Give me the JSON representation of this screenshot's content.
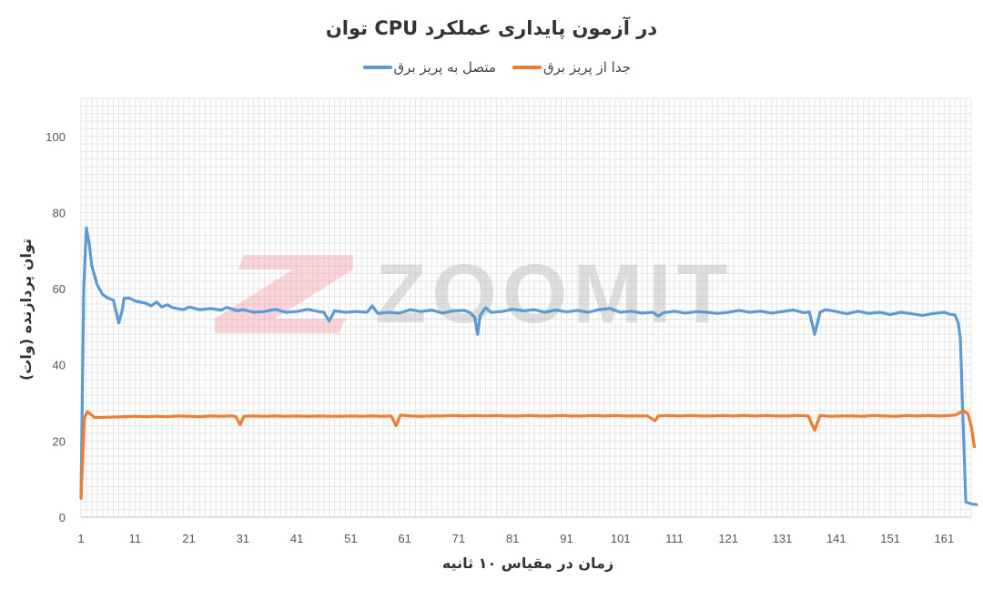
{
  "chart_data": {
    "type": "line",
    "title": "توان CPU در آزمون پایداری عملکرد",
    "xlabel": "زمان در مقیاس ۱۰ ثانیه",
    "ylabel": "توان پردازنده (وات)",
    "xlim": [
      1,
      166
    ],
    "ylim": [
      0,
      100
    ],
    "x_ticks": [
      1,
      11,
      21,
      31,
      41,
      51,
      61,
      71,
      81,
      91,
      101,
      111,
      121,
      131,
      141,
      151,
      161
    ],
    "y_ticks": [
      0,
      20,
      40,
      60,
      80,
      100
    ],
    "grid": true,
    "legend_position": "top",
    "watermark": "ZOOMIT",
    "series": [
      {
        "name": "متصل به پریز برق",
        "color": "#5b9bd5",
        "points": [
          [
            1,
            5
          ],
          [
            1.5,
            60
          ],
          [
            2,
            76
          ],
          [
            2.5,
            72
          ],
          [
            3,
            66
          ],
          [
            4,
            61
          ],
          [
            5,
            58.5
          ],
          [
            6,
            57.5
          ],
          [
            7,
            57
          ],
          [
            8,
            51
          ],
          [
            8.6,
            54
          ],
          [
            9,
            57.5
          ],
          [
            10,
            57.5
          ],
          [
            11,
            56.8
          ],
          [
            13,
            56.2
          ],
          [
            14,
            55.5
          ],
          [
            15,
            56.5
          ],
          [
            16,
            55.2
          ],
          [
            17,
            55.8
          ],
          [
            18,
            55
          ],
          [
            20,
            54.5
          ],
          [
            21,
            55.2
          ],
          [
            23,
            54.5
          ],
          [
            25,
            54.8
          ],
          [
            27,
            54.4
          ],
          [
            28,
            55.1
          ],
          [
            30,
            54.2
          ],
          [
            31,
            54.5
          ],
          [
            33,
            53.8
          ],
          [
            35,
            54
          ],
          [
            37,
            54.6
          ],
          [
            39,
            53.8
          ],
          [
            41,
            54
          ],
          [
            43,
            54.6
          ],
          [
            45,
            54
          ],
          [
            46,
            53.8
          ],
          [
            47,
            51.5
          ],
          [
            48,
            54.2
          ],
          [
            50,
            53.8
          ],
          [
            52,
            54
          ],
          [
            54,
            53.8
          ],
          [
            55,
            55.5
          ],
          [
            56,
            53.5
          ],
          [
            58,
            53.8
          ],
          [
            60,
            53.6
          ],
          [
            62,
            54.5
          ],
          [
            64,
            54
          ],
          [
            66,
            54.4
          ],
          [
            68,
            53.6
          ],
          [
            70,
            54.2
          ],
          [
            72,
            54.3
          ],
          [
            73,
            53.8
          ],
          [
            74,
            52.5
          ],
          [
            74.5,
            48
          ],
          [
            75,
            53
          ],
          [
            76,
            55
          ],
          [
            77,
            53.8
          ],
          [
            79,
            54
          ],
          [
            81,
            54.6
          ],
          [
            83,
            54.2
          ],
          [
            85,
            54.5
          ],
          [
            87,
            53.8
          ],
          [
            89,
            54.4
          ],
          [
            91,
            53.9
          ],
          [
            93,
            54.3
          ],
          [
            95,
            53.8
          ],
          [
            97,
            54.5
          ],
          [
            99,
            54.8
          ],
          [
            101,
            53.8
          ],
          [
            103,
            54.1
          ],
          [
            105,
            53.6
          ],
          [
            107,
            53.8
          ],
          [
            108,
            52.8
          ],
          [
            109,
            53.7
          ],
          [
            111,
            54.1
          ],
          [
            113,
            53.6
          ],
          [
            115,
            54
          ],
          [
            117,
            53.8
          ],
          [
            119,
            53.5
          ],
          [
            121,
            53.8
          ],
          [
            123,
            54.3
          ],
          [
            125,
            53.8
          ],
          [
            127,
            54.1
          ],
          [
            129,
            53.6
          ],
          [
            131,
            54
          ],
          [
            133,
            54.4
          ],
          [
            135,
            53.7
          ],
          [
            136,
            53.9
          ],
          [
            137,
            48
          ],
          [
            138,
            53.8
          ],
          [
            139,
            54.5
          ],
          [
            141,
            54
          ],
          [
            143,
            53.4
          ],
          [
            145,
            54.1
          ],
          [
            147,
            53.5
          ],
          [
            149,
            53.8
          ],
          [
            151,
            53.2
          ],
          [
            153,
            53.8
          ],
          [
            155,
            53.4
          ],
          [
            157,
            53
          ],
          [
            159,
            53.5
          ],
          [
            161,
            53.8
          ],
          [
            162,
            53.3
          ],
          [
            163,
            53.1
          ],
          [
            163.6,
            51
          ],
          [
            164,
            47
          ],
          [
            164.5,
            25
          ],
          [
            165,
            4
          ],
          [
            166,
            3.5
          ],
          [
            167,
            3.3
          ]
        ]
      },
      {
        "name": "جدا از پریز برق",
        "color": "#ed7d31",
        "points": [
          [
            1,
            5
          ],
          [
            1.6,
            26
          ],
          [
            2.2,
            27.7
          ],
          [
            3,
            26.8
          ],
          [
            3.5,
            26.2
          ],
          [
            5,
            26.2
          ],
          [
            7,
            26.3
          ],
          [
            9,
            26.4
          ],
          [
            11,
            26.5
          ],
          [
            13,
            26.4
          ],
          [
            15,
            26.5
          ],
          [
            17,
            26.4
          ],
          [
            19,
            26.6
          ],
          [
            21,
            26.5
          ],
          [
            23,
            26.4
          ],
          [
            25,
            26.6
          ],
          [
            27,
            26.5
          ],
          [
            29,
            26.6
          ],
          [
            29.7,
            26.4
          ],
          [
            30.5,
            24.3
          ],
          [
            31.2,
            26.5
          ],
          [
            33,
            26.6
          ],
          [
            35,
            26.5
          ],
          [
            37,
            26.6
          ],
          [
            39,
            26.5
          ],
          [
            41,
            26.6
          ],
          [
            43,
            26.5
          ],
          [
            45,
            26.6
          ],
          [
            47,
            26.5
          ],
          [
            49,
            26.5
          ],
          [
            51,
            26.6
          ],
          [
            53,
            26.5
          ],
          [
            55,
            26.6
          ],
          [
            57,
            26.5
          ],
          [
            58.5,
            26.6
          ],
          [
            59.4,
            24
          ],
          [
            60.2,
            26.8
          ],
          [
            62,
            26.6
          ],
          [
            64,
            26.5
          ],
          [
            66,
            26.6
          ],
          [
            68,
            26.6
          ],
          [
            70,
            26.7
          ],
          [
            72,
            26.6
          ],
          [
            74,
            26.7
          ],
          [
            76,
            26.6
          ],
          [
            78,
            26.7
          ],
          [
            80,
            26.6
          ],
          [
            82,
            26.6
          ],
          [
            84,
            26.7
          ],
          [
            86,
            26.6
          ],
          [
            88,
            26.6
          ],
          [
            90,
            26.7
          ],
          [
            92,
            26.6
          ],
          [
            94,
            26.6
          ],
          [
            96,
            26.7
          ],
          [
            98,
            26.6
          ],
          [
            100,
            26.7
          ],
          [
            102,
            26.6
          ],
          [
            104,
            26.6
          ],
          [
            106,
            26.6
          ],
          [
            107.4,
            25.3
          ],
          [
            108,
            26.6
          ],
          [
            110,
            26.7
          ],
          [
            112,
            26.6
          ],
          [
            114,
            26.7
          ],
          [
            116,
            26.6
          ],
          [
            118,
            26.6
          ],
          [
            120,
            26.7
          ],
          [
            122,
            26.6
          ],
          [
            124,
            26.7
          ],
          [
            126,
            26.6
          ],
          [
            128,
            26.7
          ],
          [
            130,
            26.6
          ],
          [
            132,
            26.6
          ],
          [
            134,
            26.7
          ],
          [
            135.8,
            26.6
          ],
          [
            137,
            22.8
          ],
          [
            138,
            26.7
          ],
          [
            140,
            26.5
          ],
          [
            142,
            26.6
          ],
          [
            144,
            26.6
          ],
          [
            146,
            26.5
          ],
          [
            148,
            26.7
          ],
          [
            150,
            26.6
          ],
          [
            152,
            26.5
          ],
          [
            154,
            26.7
          ],
          [
            156,
            26.6
          ],
          [
            158,
            26.7
          ],
          [
            160,
            26.6
          ],
          [
            162,
            26.7
          ],
          [
            163,
            26.8
          ],
          [
            164,
            27.5
          ],
          [
            164.6,
            27.9
          ],
          [
            165.4,
            27.2
          ],
          [
            166,
            24
          ],
          [
            166.6,
            18.5
          ]
        ]
      }
    ]
  }
}
